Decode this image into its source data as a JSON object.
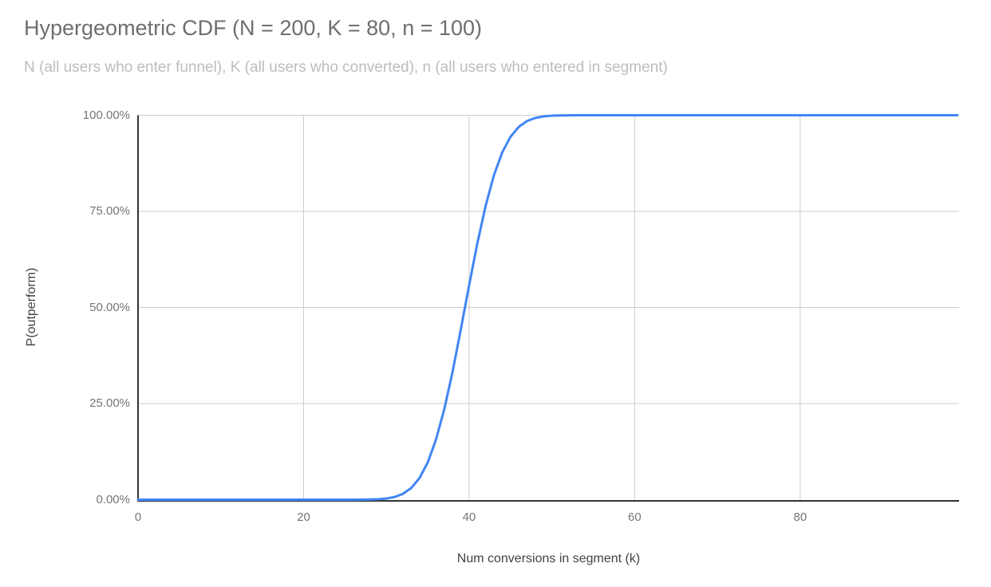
{
  "colors": {
    "line": "#4285f4",
    "grid": "#cccccc",
    "axis": "#333333",
    "title_text": "#6e6e6e",
    "subtitle_text": "#bdbdbd",
    "tick_text": "#757575",
    "axis_title_text": "#424242",
    "background": "#ffffff"
  },
  "chart_data": {
    "type": "line",
    "title": "Hypergeometric CDF (N = 200, K = 80, n = 100)",
    "subtitle": "N (all users who enter funnel), K (all users who converted), n (all users who entered in segment)",
    "xlabel": "Num conversions in segment (k)",
    "ylabel": "P(outperform)",
    "legend": "none",
    "grid": true,
    "xlim": [
      0,
      99.2
    ],
    "ylim": [
      0,
      1
    ],
    "x_tick_values": [
      0,
      20,
      40,
      60,
      80
    ],
    "x_tick_labels": [
      "0",
      "20",
      "40",
      "60",
      "80"
    ],
    "y_tick_values": [
      0,
      0.25,
      0.5,
      0.75,
      1
    ],
    "y_tick_labels": [
      "0.00%",
      "25.00%",
      "50.00%",
      "75.00%",
      "100.00%"
    ],
    "x": [
      0,
      1,
      2,
      3,
      4,
      5,
      6,
      7,
      8,
      9,
      10,
      11,
      12,
      13,
      14,
      15,
      16,
      17,
      18,
      19,
      20,
      21,
      22,
      23,
      24,
      25,
      26,
      27,
      28,
      29,
      30,
      31,
      32,
      33,
      34,
      35,
      36,
      37,
      38,
      39,
      40,
      41,
      42,
      43,
      44,
      45,
      46,
      47,
      48,
      49,
      50,
      51,
      52,
      53,
      54,
      55,
      56,
      57,
      58,
      59,
      60,
      61,
      62,
      63,
      64,
      65,
      66,
      67,
      68,
      69,
      70,
      71,
      72,
      73,
      74,
      75,
      76,
      77,
      78,
      79,
      80,
      81,
      82,
      83,
      84,
      85,
      86,
      87,
      88,
      89,
      90,
      91,
      92,
      93,
      94,
      95,
      96,
      97,
      98,
      99
    ],
    "y": [
      0,
      0,
      0,
      0,
      0,
      0,
      0,
      0,
      0,
      0,
      0,
      0,
      0,
      0,
      0,
      0,
      0,
      0,
      0,
      0,
      0,
      0,
      0,
      0,
      1e-05,
      2e-05,
      5e-05,
      0.00015,
      0.00043,
      0.00118,
      0.00297,
      0.00696,
      0.01504,
      0.03014,
      0.05604,
      0.09689,
      0.15615,
      0.23529,
      0.33256,
      0.44264,
      0.55736,
      0.66744,
      0.76471,
      0.84385,
      0.90311,
      0.94396,
      0.96986,
      0.98496,
      0.99305,
      0.99703,
      0.99883,
      0.99957,
      0.99986,
      0.99995,
      0.99999,
      1,
      1,
      1,
      1,
      1,
      1,
      1,
      1,
      1,
      1,
      1,
      1,
      1,
      1,
      1,
      1,
      1,
      1,
      1,
      1,
      1,
      1,
      1,
      1,
      1,
      1,
      1,
      1,
      1,
      1,
      1,
      1,
      1,
      1,
      1,
      1,
      1,
      1,
      1,
      1,
      1,
      1,
      1,
      1,
      1
    ]
  }
}
